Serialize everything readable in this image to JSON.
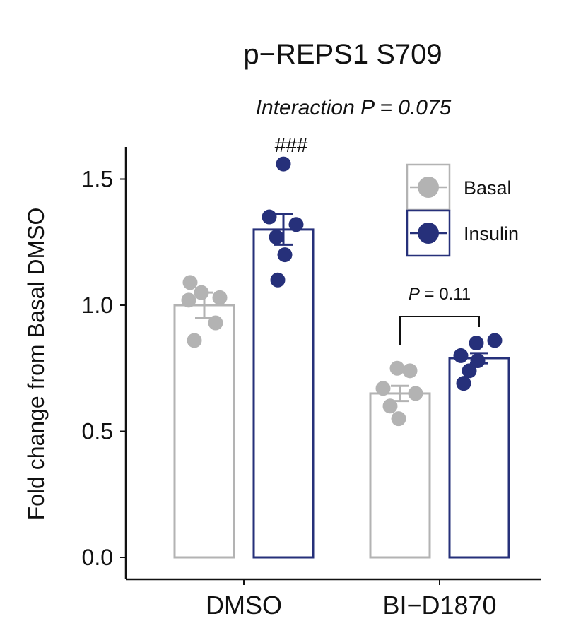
{
  "chart_data": {
    "type": "bar",
    "title": "p−REPS1 S709",
    "subtitle": "Interaction P = 0.075",
    "ylabel": "Fold change from Basal DMSO",
    "xlabel": "",
    "ylim": [
      0,
      1.6
    ],
    "yticks": [
      "0.0",
      "0.5",
      "1.0",
      "1.5"
    ],
    "categories": [
      "DMSO",
      "BI−D1870"
    ],
    "series": [
      {
        "name": "Basal",
        "color": "#b3b3b3",
        "values": [
          1.0,
          0.65
        ],
        "sem": [
          0.05,
          0.03
        ],
        "points": [
          [
            1.09,
            1.05,
            1.03,
            1.02,
            0.93,
            0.86
          ],
          [
            0.75,
            0.74,
            0.67,
            0.65,
            0.6,
            0.55
          ]
        ]
      },
      {
        "name": "Insulin",
        "color": "#26307a",
        "values": [
          1.3,
          0.79
        ],
        "sem": [
          0.06,
          0.02
        ],
        "points": [
          [
            1.56,
            1.35,
            1.32,
            1.27,
            1.2,
            1.1
          ],
          [
            0.86,
            0.85,
            0.8,
            0.78,
            0.74,
            0.69
          ]
        ]
      }
    ],
    "annotations": {
      "significance": "###",
      "pvalue_label_italic": "P",
      "pvalue_label_rest": " = 0.11"
    },
    "legend": {
      "position": "top-right",
      "entries": [
        "Basal",
        "Insulin"
      ]
    }
  }
}
